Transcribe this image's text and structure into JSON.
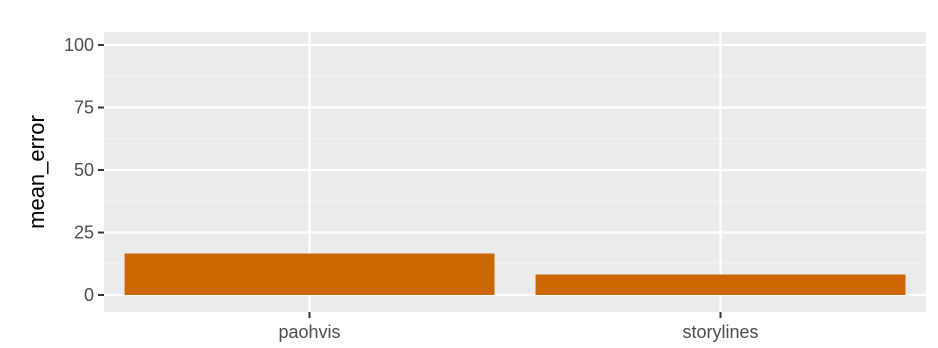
{
  "chart_data": {
    "type": "bar",
    "categories": [
      "paohvis",
      "storylines"
    ],
    "values": [
      16.6,
      8.2
    ],
    "title": "",
    "xlabel": "",
    "ylabel": "mean_error",
    "ylim": [
      0,
      100
    ],
    "yticks": [
      "0",
      "25",
      "50",
      "75",
      "100"
    ],
    "grid": true,
    "legend": "none"
  },
  "colors": {
    "bar": "#cc6600",
    "panel": "#ebebeb",
    "grid_major": "#ffffff",
    "grid_minor": "#f5f5f5",
    "tick": "#333333",
    "tick_text": "#4d4d4d"
  }
}
